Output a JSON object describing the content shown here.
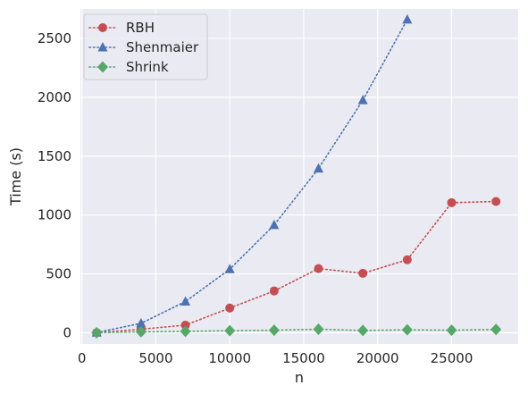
{
  "chart_data": {
    "type": "line",
    "title": "",
    "xlabel": "n",
    "ylabel": "Time (s)",
    "xlim": [
      -100,
      29500
    ],
    "ylim": [
      -95,
      2750
    ],
    "xticks": [
      0,
      5000,
      10000,
      15000,
      20000,
      25000
    ],
    "yticks": [
      0,
      500,
      1000,
      1500,
      2000,
      2500
    ],
    "grid": true,
    "legend": "top-left",
    "series": [
      {
        "name": "RBH",
        "color": "#c44e52",
        "marker": "circle",
        "x": [
          1000,
          4000,
          7000,
          10000,
          13000,
          16000,
          19000,
          22000,
          25000,
          28000
        ],
        "y": [
          1,
          30,
          65,
          210,
          355,
          545,
          505,
          620,
          1105,
          1115
        ]
      },
      {
        "name": "Shenmaier",
        "color": "#4c72b0",
        "marker": "triangle",
        "x": [
          1000,
          4000,
          7000,
          10000,
          13000,
          16000,
          19000,
          22000
        ],
        "y": [
          2,
          80,
          265,
          540,
          915,
          1395,
          1975,
          2660
        ]
      },
      {
        "name": "Shrink",
        "color": "#55a868",
        "marker": "diamond",
        "x": [
          1000,
          4000,
          7000,
          10000,
          13000,
          16000,
          19000,
          22000,
          25000,
          28000
        ],
        "y": [
          1,
          8,
          12,
          18,
          22,
          30,
          20,
          25,
          22,
          28
        ]
      }
    ]
  }
}
